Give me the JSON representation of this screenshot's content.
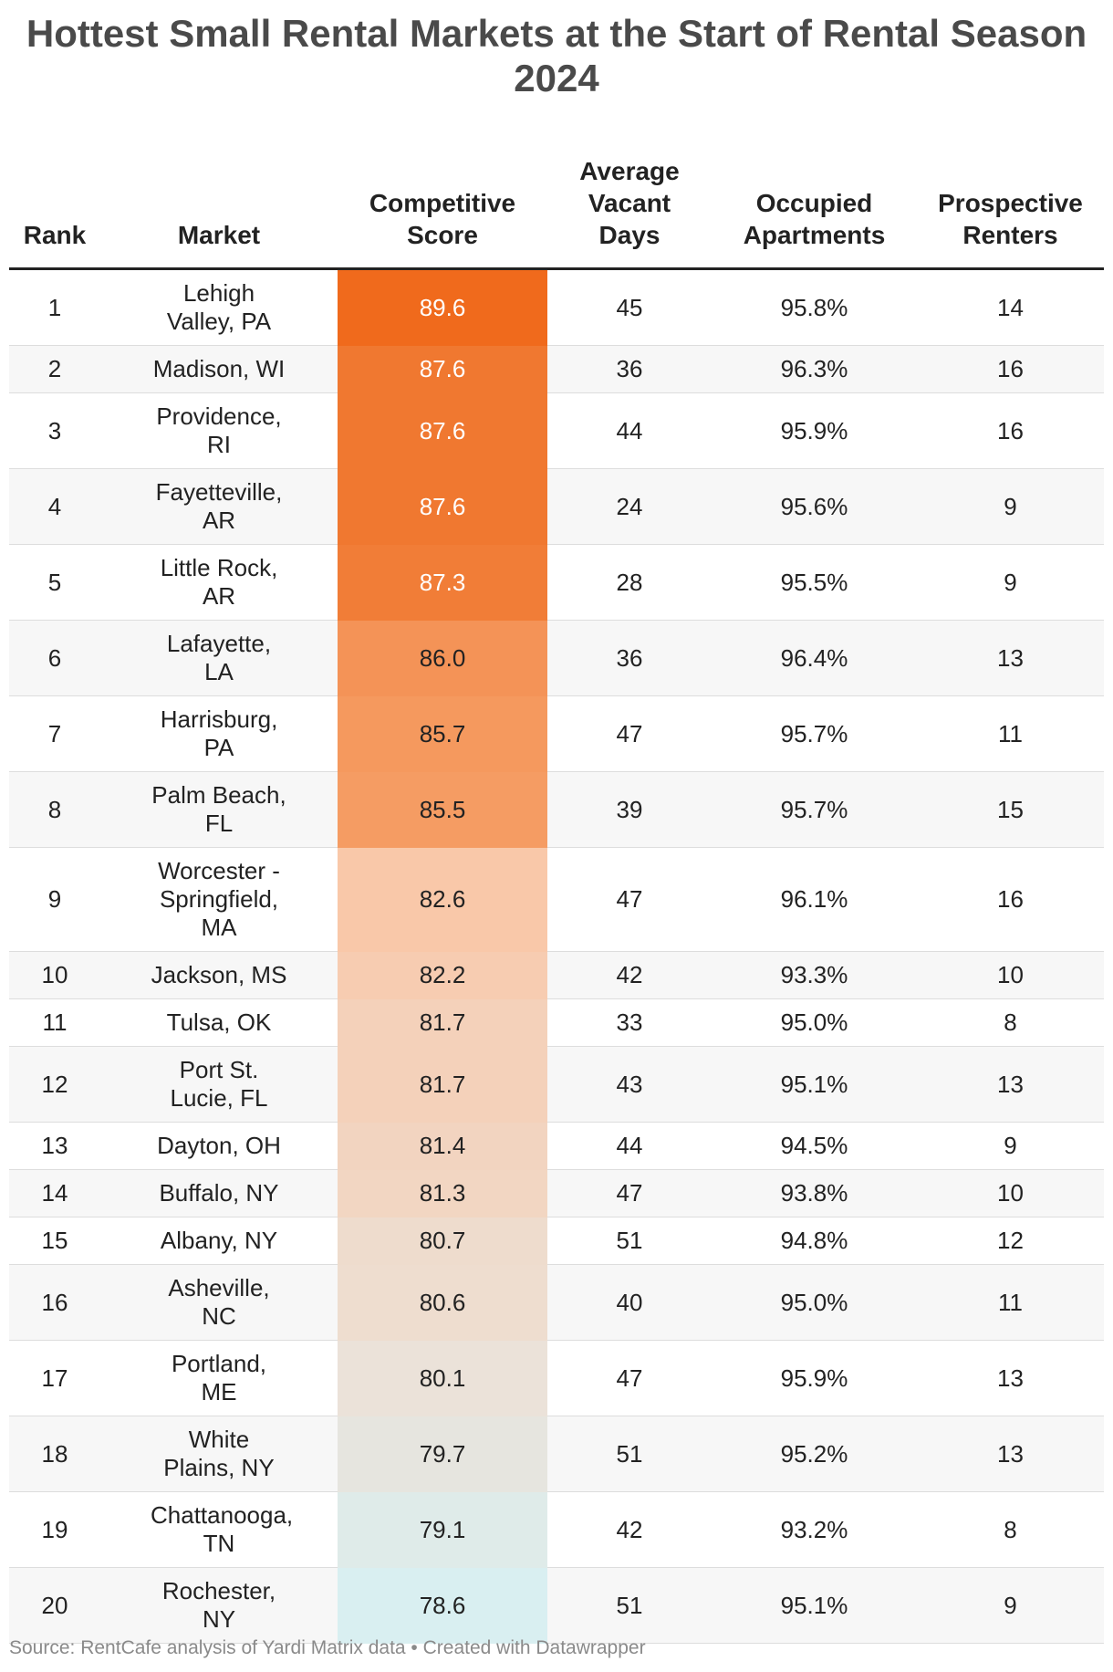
{
  "title": "Hottest Small Rental Markets at the Start of Rental Season 2024",
  "headers": {
    "rank": "Rank",
    "market": "Market",
    "score": "Competitive Score",
    "vacant_days": "Average Vacant Days",
    "occupied": "Occupied Apartments",
    "renters": "Prospective Renters"
  },
  "footer": "Source: RentCafe analysis of Yardi Matrix data • Created with Datawrapper",
  "chart_data": {
    "type": "table",
    "title": "Hottest Small Rental Markets at the Start of Rental Season 2024",
    "columns": [
      "Rank",
      "Market",
      "Competitive Score",
      "Average Vacant Days",
      "Occupied Apartments",
      "Prospective Renters"
    ],
    "score_color_scale": {
      "min": 78.6,
      "max": 89.6,
      "stops": [
        {
          "value": 78.6,
          "color": "#d9eff1"
        },
        {
          "value": 80.1,
          "color": "#ebe2d9"
        },
        {
          "value": 82.6,
          "color": "#f9c8a9"
        },
        {
          "value": 85.5,
          "color": "#f59c63"
        },
        {
          "value": 87.6,
          "color": "#f07830"
        },
        {
          "value": 89.6,
          "color": "#f06a1c"
        }
      ],
      "dark_text_color": "#222222",
      "light_text_color": "#ffffff",
      "light_text_threshold": 87.0
    },
    "rows": [
      {
        "rank": "1",
        "market": "Lehigh Valley, PA",
        "score": 89.6,
        "score_label": "89.6",
        "vacant_days": "45",
        "occupied": "95.8%",
        "renters": "14"
      },
      {
        "rank": "2",
        "market": "Madison, WI",
        "score": 87.6,
        "score_label": "87.6",
        "vacant_days": "36",
        "occupied": "96.3%",
        "renters": "16"
      },
      {
        "rank": "3",
        "market": "Providence, RI",
        "score": 87.6,
        "score_label": "87.6",
        "vacant_days": "44",
        "occupied": "95.9%",
        "renters": "16"
      },
      {
        "rank": "4",
        "market": "Fayetteville, AR",
        "score": 87.6,
        "score_label": "87.6",
        "vacant_days": "24",
        "occupied": "95.6%",
        "renters": "9"
      },
      {
        "rank": "5",
        "market": "Little Rock, AR",
        "score": 87.3,
        "score_label": "87.3",
        "vacant_days": "28",
        "occupied": "95.5%",
        "renters": "9"
      },
      {
        "rank": "6",
        "market": "Lafayette, LA",
        "score": 86.0,
        "score_label": "86.0",
        "vacant_days": "36",
        "occupied": "96.4%",
        "renters": "13"
      },
      {
        "rank": "7",
        "market": "Harrisburg, PA",
        "score": 85.7,
        "score_label": "85.7",
        "vacant_days": "47",
        "occupied": "95.7%",
        "renters": "11"
      },
      {
        "rank": "8",
        "market": "Palm Beach, FL",
        "score": 85.5,
        "score_label": "85.5",
        "vacant_days": "39",
        "occupied": "95.7%",
        "renters": "15"
      },
      {
        "rank": "9",
        "market": "Worcester - Springfield, MA",
        "score": 82.6,
        "score_label": "82.6",
        "vacant_days": "47",
        "occupied": "96.1%",
        "renters": "16"
      },
      {
        "rank": "10",
        "market": "Jackson, MS",
        "score": 82.2,
        "score_label": "82.2",
        "vacant_days": "42",
        "occupied": "93.3%",
        "renters": "10"
      },
      {
        "rank": "11",
        "market": "Tulsa, OK",
        "score": 81.7,
        "score_label": "81.7",
        "vacant_days": "33",
        "occupied": "95.0%",
        "renters": "8"
      },
      {
        "rank": "12",
        "market": "Port St. Lucie, FL",
        "score": 81.7,
        "score_label": "81.7",
        "vacant_days": "43",
        "occupied": "95.1%",
        "renters": "13"
      },
      {
        "rank": "13",
        "market": "Dayton, OH",
        "score": 81.4,
        "score_label": "81.4",
        "vacant_days": "44",
        "occupied": "94.5%",
        "renters": "9"
      },
      {
        "rank": "14",
        "market": "Buffalo, NY",
        "score": 81.3,
        "score_label": "81.3",
        "vacant_days": "47",
        "occupied": "93.8%",
        "renters": "10"
      },
      {
        "rank": "15",
        "market": "Albany, NY",
        "score": 80.7,
        "score_label": "80.7",
        "vacant_days": "51",
        "occupied": "94.8%",
        "renters": "12"
      },
      {
        "rank": "16",
        "market": "Asheville, NC",
        "score": 80.6,
        "score_label": "80.6",
        "vacant_days": "40",
        "occupied": "95.0%",
        "renters": "11"
      },
      {
        "rank": "17",
        "market": "Portland, ME",
        "score": 80.1,
        "score_label": "80.1",
        "vacant_days": "47",
        "occupied": "95.9%",
        "renters": "13"
      },
      {
        "rank": "18",
        "market": "White Plains, NY",
        "score": 79.7,
        "score_label": "79.7",
        "vacant_days": "51",
        "occupied": "95.2%",
        "renters": "13"
      },
      {
        "rank": "19",
        "market": "Chattanooga, TN",
        "score": 79.1,
        "score_label": "79.1",
        "vacant_days": "42",
        "occupied": "93.2%",
        "renters": "8"
      },
      {
        "rank": "20",
        "market": "Rochester, NY",
        "score": 78.6,
        "score_label": "78.6",
        "vacant_days": "51",
        "occupied": "95.1%",
        "renters": "9"
      }
    ]
  }
}
